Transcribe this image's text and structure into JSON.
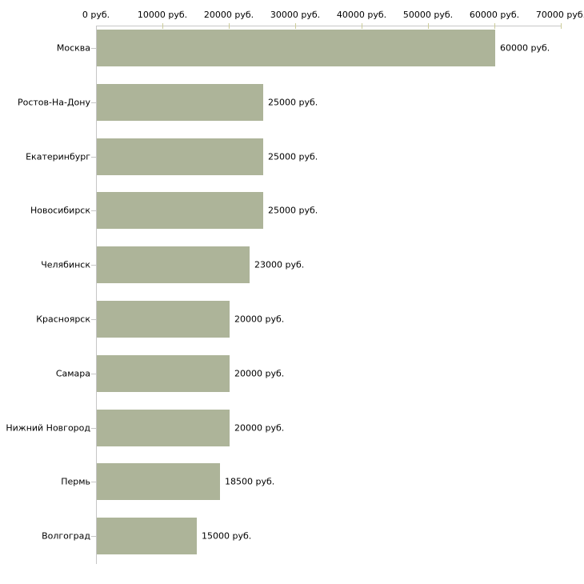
{
  "chart_data": {
    "type": "bar",
    "orientation": "horizontal",
    "title": "",
    "xlabel": "",
    "ylabel": "",
    "unit": "руб.",
    "categories": [
      "Москва",
      "Ростов-На-Дону",
      "Екатеринбург",
      "Новосибирск",
      "Челябинск",
      "Красноярск",
      "Самара",
      "Нижний Новгород",
      "Пермь",
      "Волгоград"
    ],
    "values": [
      60000,
      25000,
      25000,
      25000,
      23000,
      20000,
      20000,
      20000,
      18500,
      15000
    ],
    "value_labels": [
      "60000 руб.",
      "25000 руб.",
      "25000 руб.",
      "25000 руб.",
      "23000 руб.",
      "20000 руб.",
      "20000 руб.",
      "20000 руб.",
      "18500 руб.",
      "15000 руб."
    ],
    "x_axis": {
      "position": "top",
      "min": 0,
      "max": 70000,
      "ticks": [
        0,
        10000,
        20000,
        30000,
        40000,
        50000,
        60000,
        70000
      ],
      "tick_labels": [
        "0 руб.",
        "10000 руб.",
        "20000 руб.",
        "30000 руб.",
        "40000 руб.",
        "50000 руб.",
        "60000 руб.",
        "70000 руб."
      ]
    },
    "grid": false,
    "legend": "none",
    "colors": {
      "bar": "#adb499",
      "axis_line": "#c6c6c6",
      "tick_mark": "#cccc99",
      "text": "#000000",
      "background": "#ffffff"
    }
  }
}
